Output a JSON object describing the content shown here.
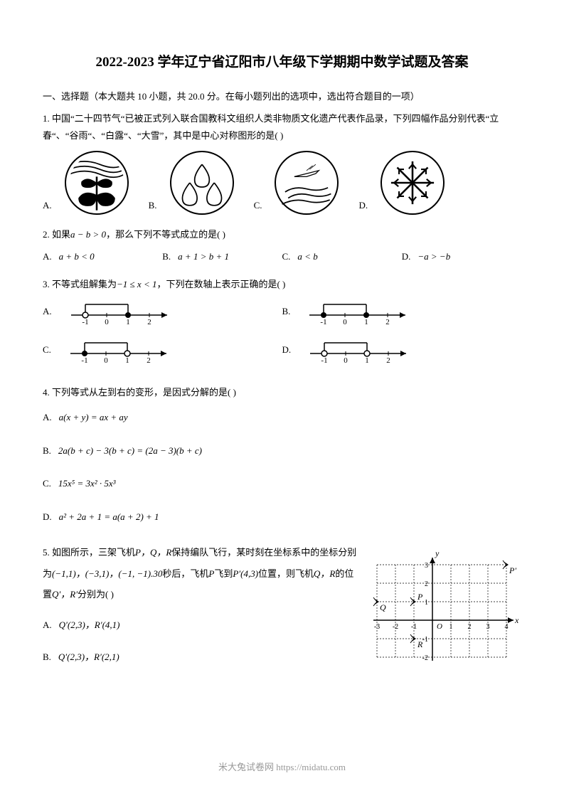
{
  "title": "2022-2023 学年辽宁省辽阳市八年级下学期期中数学试题及答案",
  "section1": "一、选择题（本大题共 10 小题，共 20.0 分。在每小题列出的选项中，选出符合题目的一项）",
  "q1": {
    "stem": "1.   中国“二十四节气“已被正式列入联合国教科文组织人类非物质文化遗产代表作品录，下列四幅作品分别代表“立春“、“谷雨“、“白露“、“大雪”，其中是中心对称图形的是(        )",
    "A": "A.",
    "B": "B.",
    "C": "C.",
    "D": "D."
  },
  "q2": {
    "stem_prefix": "2.   如果",
    "stem_math": "a − b > 0",
    "stem_suffix": "，那么下列不等式成立的是(        )",
    "A": "A.",
    "A_math": "a + b < 0",
    "B": "B.",
    "B_math": "a + 1 > b + 1",
    "C": "C.",
    "C_math": "a < b",
    "D": "D.",
    "D_math": "−a > −b"
  },
  "q3": {
    "stem_prefix": "3.   不等式组解集为",
    "stem_math": "−1 ≤ x < 1",
    "stem_suffix": "，下列在数轴上表示正确的是(        )",
    "A": "A.",
    "B": "B.",
    "C": "C.",
    "D": "D.",
    "numberline_ticks": [
      -1,
      0,
      1,
      2
    ],
    "numberline_width": 140,
    "numberline_height": 40,
    "stroke": "#000000"
  },
  "q4": {
    "stem": "4.   下列等式从左到右的变形，是因式分解的是(        )",
    "A": "A.",
    "A_math": "a(x + y) = ax + ay",
    "B": "B.",
    "B_math": "2a(b + c) − 3(b + c) = (2a − 3)(b + c)",
    "C": "C.",
    "C_math": "15x⁵ = 3x² · 5x³",
    "D": "D.",
    "D_math": "a² + 2a + 1 = a(a + 2) + 1"
  },
  "q5": {
    "stem_prefix": "5.   如图所示，三架飞机",
    "stem_pqr1": "P，Q，R",
    "stem_mid": "保持编队飞行，某时刻在坐标系中的坐标分别为",
    "coords_before": "(−1,1)，(−3,1)，(−1, −1).30",
    "stem_mid2": "秒后，飞机",
    "p": "P",
    "stem_mid3": "飞到",
    "pp": "P′(4,3)",
    "stem_mid4": "位置，则飞机",
    "qr": "Q，R",
    "stem_mid5": "的位置",
    "qprp": "Q′，R′",
    "stem_suffix": "分别为(        )",
    "A": "A.",
    "A_math": "Q′(2,3)，R′(4,1)",
    "B": "B.",
    "B_math": "Q′(2,3)，R′(2,1)",
    "chart": {
      "xlim": [
        -3,
        4
      ],
      "ylim": [
        -2,
        3
      ],
      "points": {
        "P": [
          -1,
          1
        ],
        "Q": [
          -3,
          1
        ],
        "R": [
          -1,
          -1
        ],
        "Pp": [
          4,
          3
        ]
      },
      "labels": {
        "P": "P",
        "Q": "Q",
        "R": "R",
        "Pp": "P'"
      },
      "axis_labels": {
        "x": "x",
        "y": "y",
        "origin": "O"
      },
      "x_ticks": [
        -3,
        -2,
        -1,
        1,
        2,
        3,
        4
      ],
      "y_ticks": [
        -2,
        -1,
        1,
        2,
        3
      ],
      "grid_color": "#000000",
      "grid_dash": "2 2"
    }
  },
  "footer": "米大兔试卷网 https://midatu.com",
  "colors": {
    "text": "#000000",
    "bg": "#ffffff",
    "footer": "#999999"
  }
}
